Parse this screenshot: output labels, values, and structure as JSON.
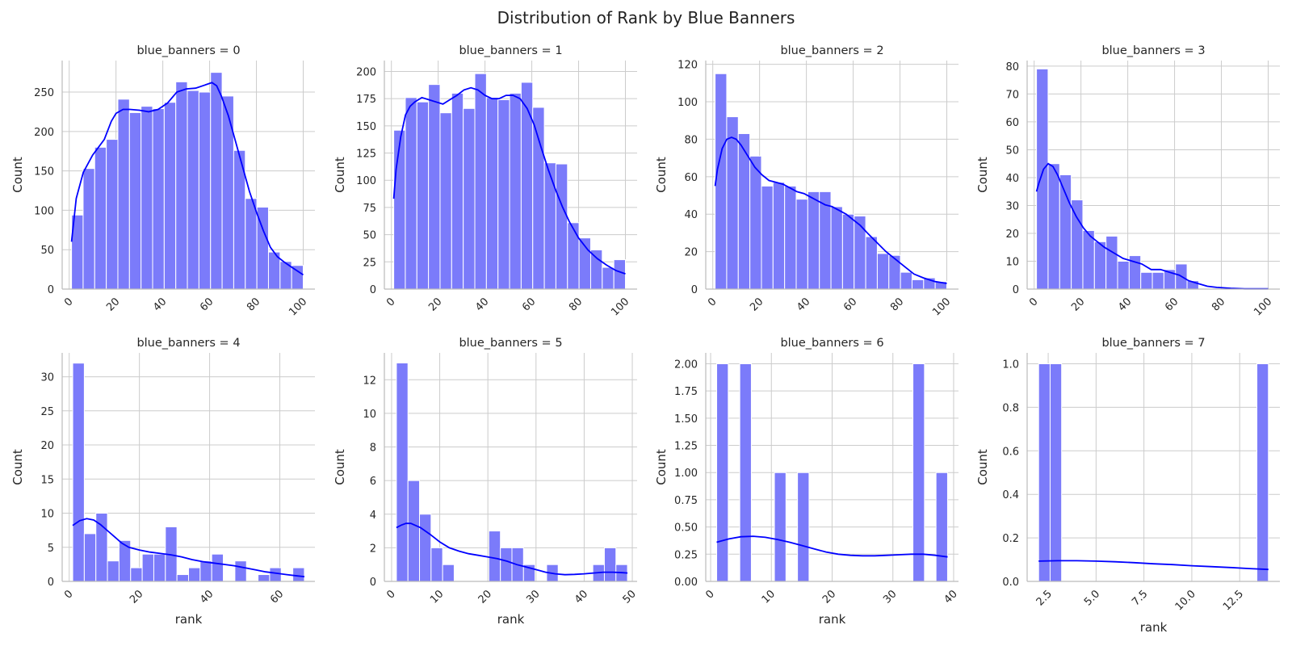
{
  "title": "Distribution of Rank by Blue Banners",
  "colors": {
    "bar": "#7b7bfa",
    "kde": "#0000ff",
    "grid": "#cccccc",
    "axis": "#bbbbbb",
    "text": "#262626"
  },
  "chart_data": [
    {
      "type": "bar",
      "title": "blue_banners = 0",
      "xlabel": "",
      "ylabel": "Count",
      "xlim": [
        -3,
        105
      ],
      "ylim": [
        0,
        290
      ],
      "xticks": [
        0,
        20,
        40,
        60,
        80,
        100
      ],
      "yticks": [
        0,
        50,
        100,
        150,
        200,
        250
      ],
      "bin_start": 1,
      "bin_width": 4.95,
      "values": [
        94,
        153,
        180,
        190,
        241,
        224,
        232,
        229,
        237,
        263,
        252,
        250,
        275,
        245,
        176,
        115,
        104,
        47,
        35,
        30
      ],
      "kde": {
        "x": [
          1,
          3,
          6,
          10,
          15,
          18,
          20,
          23,
          26,
          30,
          34,
          38,
          42,
          46,
          50,
          54,
          58,
          61,
          63,
          65,
          68,
          71,
          74,
          77,
          80,
          83,
          86,
          89,
          92,
          95,
          98,
          100
        ],
        "y": [
          60,
          115,
          148,
          170,
          190,
          213,
          223,
          228,
          228,
          227,
          225,
          228,
          236,
          250,
          254,
          255,
          259,
          262,
          258,
          245,
          220,
          188,
          156,
          124,
          98,
          74,
          53,
          41,
          34,
          28,
          22,
          18
        ]
      }
    },
    {
      "type": "bar",
      "title": "blue_banners = 1",
      "xlabel": "",
      "ylabel": "Count",
      "xlim": [
        -3,
        105
      ],
      "ylim": [
        0,
        210
      ],
      "xticks": [
        0,
        20,
        40,
        60,
        80,
        100
      ],
      "yticks": [
        0,
        25,
        50,
        75,
        100,
        125,
        150,
        175,
        200
      ],
      "bin_start": 1,
      "bin_width": 4.95,
      "values": [
        146,
        176,
        172,
        188,
        162,
        180,
        166,
        198,
        176,
        174,
        180,
        190,
        167,
        116,
        115,
        61,
        47,
        36,
        20,
        27
      ],
      "kde": {
        "x": [
          1,
          2,
          4,
          6,
          8,
          10,
          13,
          16,
          19,
          22,
          25,
          28,
          31,
          34,
          37,
          40,
          43,
          46,
          49,
          52,
          55,
          58,
          61,
          64,
          67,
          70,
          73,
          76,
          80,
          84,
          88,
          92,
          96,
          100
        ],
        "y": [
          83,
          110,
          140,
          160,
          168,
          172,
          176,
          174,
          172,
          170,
          174,
          178,
          183,
          185,
          183,
          178,
          175,
          175,
          178,
          178,
          175,
          166,
          151,
          130,
          110,
          92,
          76,
          62,
          47,
          36,
          28,
          22,
          17,
          14
        ]
      }
    },
    {
      "type": "bar",
      "title": "blue_banners = 2",
      "xlabel": "",
      "ylabel": "Count",
      "xlim": [
        -3,
        105
      ],
      "ylim": [
        0,
        122
      ],
      "xticks": [
        0,
        20,
        40,
        60,
        80,
        100
      ],
      "yticks": [
        0,
        20,
        40,
        60,
        80,
        100,
        120
      ],
      "bin_start": 1,
      "bin_width": 4.95,
      "values": [
        115,
        92,
        83,
        71,
        55,
        57,
        55,
        48,
        52,
        52,
        44,
        40,
        39,
        28,
        19,
        18,
        9,
        5,
        6,
        4
      ],
      "kde": {
        "x": [
          1,
          2,
          4,
          6,
          8,
          10,
          12,
          15,
          18,
          21,
          24,
          27,
          30,
          33,
          36,
          39,
          42,
          45,
          48,
          51,
          54,
          57,
          60,
          63,
          66,
          70,
          74,
          78,
          82,
          86,
          90,
          95,
          100
        ],
        "y": [
          55,
          64,
          75,
          80,
          81,
          80,
          77,
          71,
          65,
          61,
          58,
          57,
          56,
          54,
          52,
          51,
          49,
          47,
          45,
          44,
          42,
          40,
          37,
          34,
          30,
          25,
          20,
          16,
          12,
          8,
          6,
          4,
          3
        ]
      }
    },
    {
      "type": "bar",
      "title": "blue_banners = 3",
      "xlabel": "",
      "ylabel": "Count",
      "xlim": [
        -3,
        105
      ],
      "ylim": [
        0,
        82
      ],
      "xticks": [
        0,
        20,
        40,
        60,
        80,
        100
      ],
      "yticks": [
        0,
        10,
        20,
        30,
        40,
        50,
        60,
        70,
        80
      ],
      "bin_start": 1,
      "bin_width": 4.95,
      "values": [
        79,
        45,
        41,
        32,
        21,
        17,
        19,
        10,
        12,
        6,
        6,
        7,
        9,
        3,
        0,
        0,
        0,
        0,
        0,
        0
      ],
      "kde": {
        "x": [
          1,
          2,
          4,
          6,
          8,
          10,
          12,
          15,
          18,
          21,
          24,
          27,
          30,
          34,
          38,
          42,
          46,
          50,
          54,
          58,
          62,
          66,
          70,
          74,
          78,
          84,
          90,
          100
        ],
        "y": [
          35,
          38,
          43,
          45,
          44,
          41,
          37,
          31,
          26,
          22,
          19,
          17,
          15,
          13,
          11,
          10,
          9,
          7,
          7,
          6,
          5,
          3,
          2,
          1,
          0.6,
          0.3,
          0.1,
          0.1
        ]
      }
    },
    {
      "type": "bar",
      "title": "blue_banners = 4",
      "xlabel": "rank",
      "ylabel": "Count",
      "xlim": [
        -2,
        70
      ],
      "ylim": [
        0,
        33.5
      ],
      "xticks": [
        0,
        20,
        40,
        60
      ],
      "yticks": [
        0,
        5,
        10,
        15,
        20,
        25,
        30
      ],
      "bin_start": 1,
      "bin_width": 3.3,
      "values": [
        32,
        7,
        10,
        3,
        6,
        2,
        4,
        4,
        8,
        1,
        2,
        3,
        4,
        0,
        3,
        0,
        1,
        2,
        0,
        2
      ],
      "kde": {
        "x": [
          1,
          3,
          5,
          7,
          9,
          11,
          13,
          15,
          17,
          20,
          23,
          26,
          29,
          32,
          35,
          38,
          41,
          44,
          47,
          50,
          53,
          56,
          59,
          62,
          65,
          67
        ],
        "y": [
          8.2,
          8.9,
          9.2,
          9.0,
          8.3,
          7.4,
          6.5,
          5.6,
          5.0,
          4.6,
          4.3,
          4.1,
          3.9,
          3.6,
          3.2,
          2.9,
          2.7,
          2.5,
          2.3,
          2.0,
          1.7,
          1.4,
          1.2,
          1.0,
          0.8,
          0.7
        ]
      }
    },
    {
      "type": "bar",
      "title": "blue_banners = 5",
      "xlabel": "rank",
      "ylabel": "Count",
      "xlim": [
        -1.5,
        51
      ],
      "ylim": [
        0,
        13.6
      ],
      "xticks": [
        0,
        10,
        20,
        30,
        40,
        50
      ],
      "yticks": [
        0,
        2,
        4,
        6,
        8,
        10,
        12
      ],
      "bin_start": 1,
      "bin_width": 2.4,
      "values": [
        13,
        6,
        4,
        2,
        1,
        0,
        0,
        0,
        3,
        2,
        2,
        1,
        0,
        1,
        0,
        0,
        0,
        1,
        2,
        1
      ],
      "kde": {
        "x": [
          1,
          2,
          3,
          4,
          6,
          8,
          10,
          12,
          14,
          16,
          18,
          20,
          22,
          24,
          26,
          28,
          30,
          32,
          34,
          36,
          38,
          40,
          42,
          44,
          46,
          48,
          49
        ],
        "y": [
          3.2,
          3.35,
          3.45,
          3.45,
          3.2,
          2.8,
          2.35,
          2.0,
          1.8,
          1.65,
          1.55,
          1.45,
          1.35,
          1.2,
          1.0,
          0.85,
          0.7,
          0.55,
          0.45,
          0.4,
          0.42,
          0.45,
          0.5,
          0.55,
          0.55,
          0.52,
          0.5
        ]
      }
    },
    {
      "type": "bar",
      "title": "blue_banners = 6",
      "xlabel": "rank",
      "ylabel": "Count",
      "xlim": [
        -0.8,
        40.8
      ],
      "ylim": [
        0,
        2.1
      ],
      "xticks": [
        0,
        10,
        20,
        30,
        40
      ],
      "yticks": [
        0,
        0.25,
        0.5,
        0.75,
        1.0,
        1.25,
        1.5,
        1.75,
        2.0
      ],
      "ytick_labels": [
        "0.00",
        "0.25",
        "0.50",
        "0.75",
        "1.00",
        "1.25",
        "1.50",
        "1.75",
        "2.00"
      ],
      "bin_start": 1,
      "bin_width": 1.9,
      "values": [
        2,
        0,
        2,
        0,
        0,
        1,
        0,
        1,
        0,
        0,
        0,
        0,
        0,
        0,
        0,
        0,
        0,
        2,
        0,
        1
      ],
      "kde": {
        "x": [
          1,
          3,
          5,
          7,
          9,
          11,
          13,
          15,
          17,
          19,
          21,
          23,
          25,
          27,
          29,
          31,
          33,
          35,
          37,
          39
        ],
        "y": [
          0.36,
          0.39,
          0.41,
          0.415,
          0.405,
          0.385,
          0.36,
          0.33,
          0.3,
          0.27,
          0.25,
          0.24,
          0.235,
          0.235,
          0.24,
          0.245,
          0.25,
          0.25,
          0.24,
          0.225
        ]
      }
    },
    {
      "type": "bar",
      "title": "blue_banners = 7",
      "xlabel": "rank",
      "ylabel": "Count",
      "xlim": [
        1.4,
        14.6
      ],
      "ylim": [
        0,
        1.05
      ],
      "xticks": [
        2.5,
        5.0,
        7.5,
        10.0,
        12.5
      ],
      "yticks": [
        0,
        0.2,
        0.4,
        0.6,
        0.8,
        1.0
      ],
      "xtick_labels": [
        "2.5",
        "5.0",
        "7.5",
        "10.0",
        "12.5"
      ],
      "ytick_labels": [
        "0.0",
        "0.2",
        "0.4",
        "0.6",
        "0.8",
        "1.0"
      ],
      "bin_start": 2,
      "bin_width": 0.6,
      "values": [
        1,
        1,
        0,
        0,
        0,
        0,
        0,
        0,
        0,
        0,
        0,
        0,
        0,
        0,
        0,
        0,
        0,
        0,
        0,
        1
      ],
      "kde": {
        "x": [
          2,
          3,
          4,
          5,
          6,
          7,
          8,
          9,
          10,
          11,
          12,
          13,
          14
        ],
        "y": [
          0.093,
          0.095,
          0.095,
          0.093,
          0.09,
          0.086,
          0.081,
          0.077,
          0.072,
          0.068,
          0.064,
          0.059,
          0.055
        ]
      }
    }
  ]
}
